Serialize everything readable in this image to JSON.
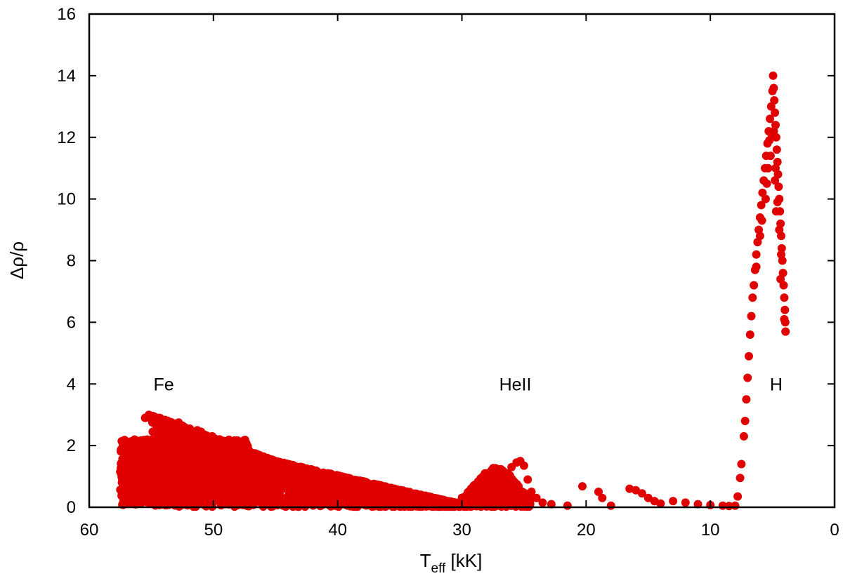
{
  "chart_data": {
    "type": "scatter",
    "title": "",
    "xlabel": {
      "main": "T",
      "sub": "eff",
      "unit": " [kK]"
    },
    "ylabel": "Δρ/ρ",
    "xlim": [
      60,
      0
    ],
    "ylim": [
      0,
      16
    ],
    "x_ticks": [
      60,
      50,
      40,
      30,
      20,
      10,
      0
    ],
    "y_ticks": [
      0,
      2,
      4,
      6,
      8,
      10,
      12,
      14,
      16
    ],
    "x_tick_labels": [
      "60",
      "50",
      "40",
      "30",
      "20",
      "10",
      "0"
    ],
    "y_tick_labels": [
      "0",
      "2",
      "4",
      "6",
      "8",
      "10",
      "12",
      "14",
      "16"
    ],
    "grid": false,
    "marker_color": "#e00000",
    "annotations": [
      {
        "text": "Fe",
        "x": 54.0,
        "y": 4.0
      },
      {
        "text": "HeII",
        "x": 25.7,
        "y": 4.0
      },
      {
        "text": "H",
        "x": 4.7,
        "y": 4.0
      }
    ],
    "series": [
      {
        "name": "Δρ/ρ",
        "points": [
          [
            57.5,
            1.15
          ],
          [
            57.2,
            1.5
          ],
          [
            56.9,
            1.25
          ],
          [
            56.6,
            0.9
          ],
          [
            56.3,
            1.6
          ],
          [
            56.0,
            1.3
          ],
          [
            55.8,
            0.75
          ],
          [
            55.5,
            2.9
          ],
          [
            55.2,
            3.0
          ],
          [
            54.9,
            2.95
          ],
          [
            54.6,
            2.85
          ],
          [
            54.3,
            2.2
          ],
          [
            54.0,
            1.8
          ],
          [
            53.7,
            2.6
          ],
          [
            53.4,
            1.4
          ],
          [
            53.1,
            2.7
          ],
          [
            52.8,
            2.75
          ],
          [
            52.5,
            2.65
          ],
          [
            52.2,
            2.0
          ],
          [
            51.9,
            2.55
          ],
          [
            51.6,
            1.1
          ],
          [
            51.3,
            2.5
          ],
          [
            51.0,
            2.45
          ],
          [
            50.7,
            2.3
          ],
          [
            50.4,
            1.7
          ],
          [
            50.1,
            2.3
          ],
          [
            49.8,
            0.6
          ],
          [
            49.5,
            2.2
          ],
          [
            49.2,
            2.1
          ],
          [
            48.9,
            1.5
          ],
          [
            48.6,
            2.05
          ],
          [
            48.3,
            1.95
          ],
          [
            48.0,
            1.2
          ],
          [
            47.7,
            1.9
          ],
          [
            47.4,
            1.85
          ],
          [
            47.1,
            0.9
          ],
          [
            46.8,
            1.75
          ],
          [
            46.5,
            1.7
          ],
          [
            46.2,
            1.3
          ],
          [
            45.9,
            1.6
          ],
          [
            45.6,
            1.55
          ],
          [
            45.3,
            0.7
          ],
          [
            45.0,
            1.45
          ],
          [
            44.5,
            1.4
          ],
          [
            44.0,
            1.3
          ],
          [
            43.5,
            1.2
          ],
          [
            43.0,
            1.15
          ],
          [
            42.5,
            1.05
          ],
          [
            42.0,
            0.95
          ],
          [
            41.5,
            0.9
          ],
          [
            41.0,
            0.8
          ],
          [
            40.5,
            0.75
          ],
          [
            40.0,
            0.65
          ],
          [
            39.5,
            0.6
          ],
          [
            39.0,
            0.5
          ],
          [
            38.5,
            0.45
          ],
          [
            38.0,
            0.4
          ],
          [
            37.5,
            0.35
          ],
          [
            37.0,
            0.3
          ],
          [
            36.5,
            0.25
          ],
          [
            36.0,
            0.22
          ],
          [
            35.5,
            0.2
          ],
          [
            35.0,
            0.18
          ],
          [
            34.5,
            0.15
          ],
          [
            34.0,
            0.13
          ],
          [
            33.5,
            0.12
          ],
          [
            33.0,
            0.1
          ],
          [
            32.5,
            0.08
          ],
          [
            32.0,
            0.07
          ],
          [
            31.5,
            0.06
          ],
          [
            31.0,
            0.1
          ],
          [
            30.5,
            0.15
          ],
          [
            30.0,
            0.25
          ],
          [
            29.6,
            0.4
          ],
          [
            29.2,
            0.55
          ],
          [
            28.8,
            0.75
          ],
          [
            28.4,
            0.95
          ],
          [
            28.0,
            1.1
          ],
          [
            27.6,
            1.2
          ],
          [
            27.2,
            1.25
          ],
          [
            26.8,
            1.2
          ],
          [
            26.4,
            1.1
          ],
          [
            26.0,
            1.3
          ],
          [
            25.6,
            1.45
          ],
          [
            25.3,
            1.5
          ],
          [
            25.0,
            1.35
          ],
          [
            24.7,
            0.9
          ],
          [
            24.4,
            0.5
          ],
          [
            24.0,
            0.3
          ],
          [
            23.5,
            0.15
          ],
          [
            22.8,
            0.1
          ],
          [
            21.5,
            0.05
          ],
          [
            20.3,
            0.68
          ],
          [
            19.0,
            0.5
          ],
          [
            18.7,
            0.3
          ],
          [
            18.0,
            0.05
          ],
          [
            16.5,
            0.6
          ],
          [
            16.0,
            0.55
          ],
          [
            15.5,
            0.45
          ],
          [
            15.0,
            0.3
          ],
          [
            14.5,
            0.2
          ],
          [
            14.0,
            0.12
          ],
          [
            13.0,
            0.2
          ],
          [
            12.0,
            0.15
          ],
          [
            11.0,
            0.1
          ],
          [
            10.0,
            0.07
          ],
          [
            9.0,
            0.05
          ],
          [
            8.5,
            0.04
          ],
          [
            8.0,
            0.05
          ],
          [
            7.8,
            0.35
          ],
          [
            7.6,
            0.95
          ],
          [
            7.5,
            1.4
          ],
          [
            7.3,
            2.3
          ],
          [
            7.2,
            2.8
          ],
          [
            7.1,
            3.5
          ],
          [
            7.0,
            4.2
          ],
          [
            6.9,
            4.9
          ],
          [
            6.8,
            5.6
          ],
          [
            6.7,
            6.2
          ],
          [
            6.6,
            6.8
          ],
          [
            6.5,
            7.2
          ],
          [
            6.4,
            7.7
          ],
          [
            6.3,
            8.2
          ],
          [
            6.2,
            8.6
          ],
          [
            6.1,
            9.0
          ],
          [
            6.0,
            9.4
          ],
          [
            5.9,
            9.8
          ],
          [
            5.8,
            10.2
          ],
          [
            5.7,
            10.6
          ],
          [
            5.6,
            11.0
          ],
          [
            5.5,
            11.4
          ],
          [
            5.4,
            11.8
          ],
          [
            5.3,
            12.2
          ],
          [
            5.2,
            12.6
          ],
          [
            5.1,
            13.0
          ],
          [
            5.0,
            13.5
          ],
          [
            4.95,
            14.0
          ],
          [
            4.9,
            13.6
          ],
          [
            4.85,
            13.2
          ],
          [
            4.8,
            12.8
          ],
          [
            4.75,
            12.4
          ],
          [
            4.7,
            12.0
          ],
          [
            4.65,
            11.6
          ],
          [
            4.6,
            11.2
          ],
          [
            4.55,
            10.8
          ],
          [
            4.5,
            10.4
          ],
          [
            4.45,
            10.0
          ],
          [
            4.4,
            9.6
          ],
          [
            4.35,
            9.2
          ],
          [
            4.3,
            8.8
          ],
          [
            4.25,
            8.4
          ],
          [
            4.2,
            8.0
          ],
          [
            4.15,
            7.6
          ],
          [
            4.1,
            7.2
          ],
          [
            4.05,
            6.8
          ],
          [
            4.0,
            6.4
          ],
          [
            3.97,
            6.0
          ],
          [
            3.95,
            5.7
          ],
          [
            5.05,
            12.0
          ],
          [
            5.15,
            11.4
          ],
          [
            4.9,
            12.2
          ],
          [
            4.75,
            11.0
          ],
          [
            4.6,
            9.9
          ],
          [
            4.45,
            9.0
          ],
          [
            4.3,
            8.2
          ],
          [
            4.8,
            10.6
          ],
          [
            5.25,
            11.9
          ],
          [
            5.35,
            11.0
          ],
          [
            5.45,
            10.5
          ],
          [
            5.55,
            10.0
          ],
          [
            4.7,
            9.6
          ],
          [
            4.35,
            7.4
          ],
          [
            4.05,
            6.1
          ],
          [
            6.0,
            8.8
          ],
          [
            6.3,
            7.8
          ],
          [
            5.85,
            9.3
          ]
        ],
        "clusters": [
          {
            "x_range": [
              57.5,
              47
            ],
            "y_range": [
              0.05,
              2.2
            ],
            "count": 1200
          },
          {
            "x_range": [
              55,
              30
            ],
            "y_top_line": [
              [
                55,
                3.0
              ],
              [
                45,
                1.5
              ],
              [
                30,
                0.1
              ]
            ],
            "count": 2200
          },
          {
            "x_range": [
              30,
              24.5
            ],
            "y_range": [
              0.0,
              1.3
            ],
            "count": 500
          }
        ]
      }
    ]
  }
}
